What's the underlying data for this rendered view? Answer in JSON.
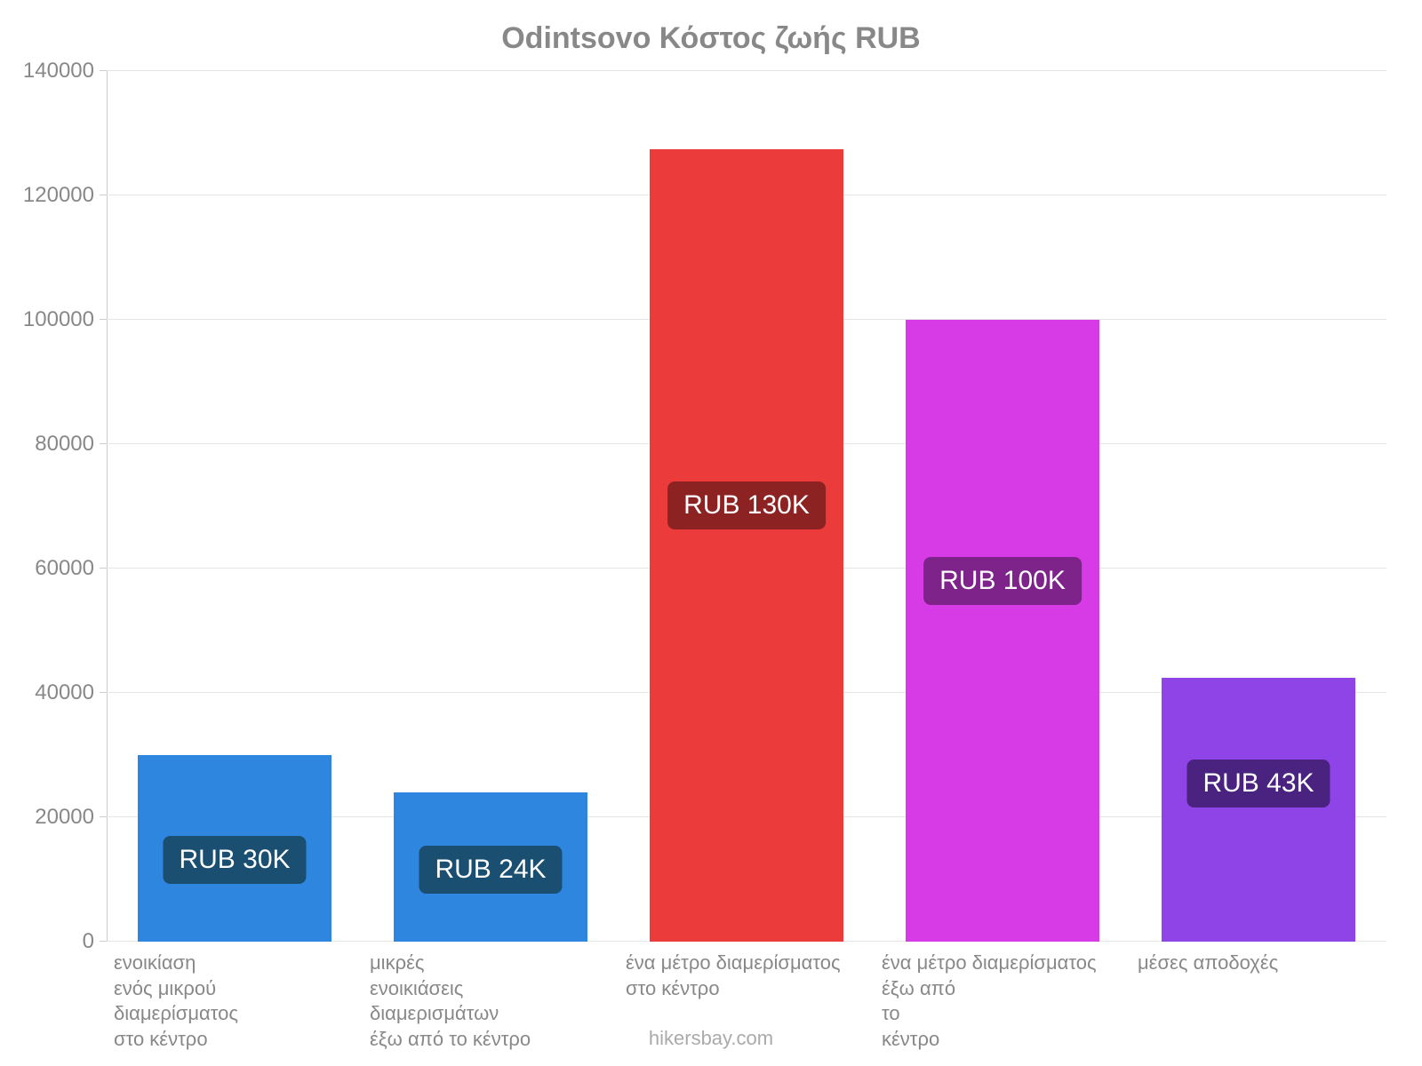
{
  "chart": {
    "type": "bar",
    "title": "Odintsovo Κόστος ζωής RUB",
    "title_color": "#888888",
    "title_fontsize": 34,
    "background_color": "#ffffff",
    "grid_color": "#e5e5e5",
    "axis_color": "#cccccc",
    "tick_label_color": "#888888",
    "tick_fontsize": 24,
    "x_label_fontsize": 22,
    "bar_value_fontsize": 30,
    "ylim": [
      0,
      140000
    ],
    "ytick_step": 20000,
    "yticks": [
      {
        "value": 0,
        "label": "0"
      },
      {
        "value": 20000,
        "label": "20000"
      },
      {
        "value": 40000,
        "label": "40000"
      },
      {
        "value": 60000,
        "label": "60000"
      },
      {
        "value": 80000,
        "label": "80000"
      },
      {
        "value": 100000,
        "label": "100000"
      },
      {
        "value": 120000,
        "label": "120000"
      },
      {
        "value": 140000,
        "label": "140000"
      }
    ],
    "bars": [
      {
        "category": "ενοικίαση\nενός μικρού\nδιαμερίσματος\nστο κέντρο",
        "value": 30000,
        "value_label": "RUB 30K",
        "bar_color": "#2e86de",
        "label_bg": "#1b4f72",
        "label_offset": 0.56
      },
      {
        "category": "μικρές\nενοικιάσεις\nδιαμερισμάτων\nέξω από το κέντρο",
        "value": 24000,
        "value_label": "RUB 24K",
        "bar_color": "#2e86de",
        "label_bg": "#1b4f72",
        "label_offset": 0.52
      },
      {
        "category": "ένα μέτρο διαμερίσματος\nστο κέντρο",
        "value": 127500,
        "value_label": "RUB 130K",
        "bar_color": "#eb3b3b",
        "label_bg": "#8d2222",
        "label_offset": 0.45
      },
      {
        "category": "ένα μέτρο διαμερίσματος\nέξω από\nτο\nκέντρο",
        "value": 100000,
        "value_label": "RUB 100K",
        "bar_color": "#d63be6",
        "label_bg": "#7d238a",
        "label_offset": 0.42
      },
      {
        "category": "μέσες αποδοχές",
        "value": 42500,
        "value_label": "RUB 43K",
        "bar_color": "#8e44e6",
        "label_bg": "#4a2280",
        "label_offset": 0.4
      }
    ],
    "attribution": "hikersbay.com",
    "attribution_color": "#aaaaaa"
  }
}
